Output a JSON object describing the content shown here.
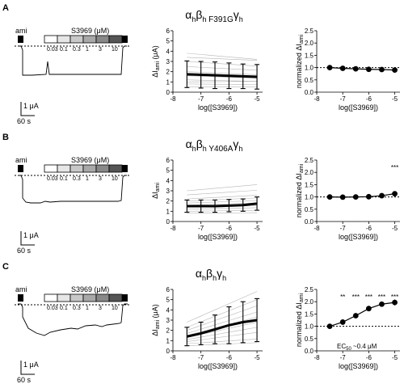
{
  "panels": [
    {
      "letter": "A",
      "subunit": {
        "alpha": "α",
        "alpha_sub": "h",
        "beta": "β",
        "beta_sub": "h",
        "mut": "F391G",
        "gamma": "γ",
        "gamma_sub": "h"
      },
      "trace": {
        "ami": "ami",
        "drug": "S3969 (μM)",
        "concs": [
          "0.03",
          "0.1",
          "0.3",
          "1",
          "3",
          "10"
        ],
        "scale_current": "1 μA",
        "scale_time": "60 s"
      },
      "abs": {
        "ylabel_main": "ΔI",
        "ylabel_sub": "ami",
        "ylabel_unit": " (μA)",
        "yticks": [
          "0",
          "1",
          "2",
          "3",
          "4",
          "5",
          "6"
        ],
        "ylim": [
          0,
          6
        ],
        "xlabel": "log([S3969])",
        "xticks": [
          "-8",
          "-7",
          "-6",
          "-5"
        ],
        "xlim": [
          -8,
          -4.8
        ],
        "mean": [
          [
            -7.5,
            1.75
          ],
          [
            -7,
            1.7
          ],
          [
            -6.5,
            1.65
          ],
          [
            -6,
            1.6
          ],
          [
            -5.5,
            1.55
          ],
          [
            -5,
            1.5
          ]
        ],
        "sd": [
          1.3,
          1.3,
          1.3,
          1.25,
          1.2,
          1.2
        ],
        "individual_starts": [
          0.8,
          1.2,
          1.6,
          2.0,
          2.5,
          3.0,
          3.4,
          3.8,
          0.5,
          1.0
        ],
        "individual_slopes": [
          -0.02,
          -0.05,
          -0.08,
          -0.1,
          -0.12,
          -0.15,
          -0.1,
          -0.2,
          0.0,
          0.02
        ]
      },
      "norm": {
        "ylabel_main": "normalized ΔI",
        "ylabel_sub": "ami",
        "yticks": [
          "0.0",
          "0.5",
          "1.0",
          "1.5",
          "2.0",
          "2.5"
        ],
        "ylim": [
          0,
          2.5
        ],
        "xlabel": "log([S3969])",
        "xticks": [
          "-8",
          "-7",
          "-6",
          "-5"
        ],
        "xlim": [
          -8,
          -4.8
        ],
        "points": [
          [
            -7.5,
            1.0
          ],
          [
            -7,
            0.97
          ],
          [
            -6.5,
            0.95
          ],
          [
            -6,
            0.93
          ],
          [
            -5.5,
            0.92
          ],
          [
            -5,
            0.9
          ]
        ],
        "err": [
          0.03,
          0.05,
          0.1,
          0.08,
          0.07,
          0.1
        ],
        "stars": [],
        "annotation_main": "",
        "annotation_sub": "",
        "annotation_rest": ""
      }
    },
    {
      "letter": "B",
      "subunit": {
        "alpha": "α",
        "alpha_sub": "h",
        "beta": "β",
        "beta_sub": "h",
        "mut": "Y406A",
        "gamma": "γ",
        "gamma_sub": "h"
      },
      "trace": {
        "ami": "ami",
        "drug": "S3969 (μM)",
        "concs": [
          "0.03",
          "0.1",
          "0.3",
          "1",
          "3",
          "10"
        ],
        "scale_current": "1 μA",
        "scale_time": "60 s"
      },
      "abs": {
        "ylabel_main": "ΔI",
        "ylabel_sub": "ami",
        "ylabel_unit": "",
        "yticks": [
          "0",
          "1",
          "2",
          "3",
          "4",
          "5",
          "6"
        ],
        "ylim": [
          0,
          6
        ],
        "xlabel": "log([S3969])",
        "xticks": [
          "-8",
          "-7",
          "-6",
          "-5"
        ],
        "xlim": [
          -8,
          -4.8
        ],
        "mean": [
          [
            -7.5,
            1.5
          ],
          [
            -7,
            1.5
          ],
          [
            -6.5,
            1.5
          ],
          [
            -6,
            1.55
          ],
          [
            -5.5,
            1.6
          ],
          [
            -5,
            1.75
          ]
        ],
        "sd": [
          0.6,
          0.6,
          0.6,
          0.6,
          0.6,
          0.65
        ],
        "individual_starts": [
          0.8,
          1.0,
          1.2,
          1.4,
          1.6,
          1.8,
          2.0,
          2.2,
          2.6,
          3.0
        ],
        "individual_slopes": [
          0.02,
          0.03,
          0.05,
          0.05,
          0.07,
          0.08,
          0.1,
          0.12,
          0.15,
          0.2
        ]
      },
      "norm": {
        "ylabel_main": "normalized ΔI",
        "ylabel_sub": "ami",
        "yticks": [
          "0.0",
          "0.5",
          "1.0",
          "1.5",
          "2.0",
          "2.5"
        ],
        "ylim": [
          0,
          2.5
        ],
        "xlabel": "log([S3969])",
        "xticks": [
          "-8",
          "-7",
          "-6",
          "-5"
        ],
        "xlim": [
          -8,
          -4.8
        ],
        "points": [
          [
            -7.5,
            1.0
          ],
          [
            -7,
            0.99
          ],
          [
            -6.5,
            1.0
          ],
          [
            -6,
            1.01
          ],
          [
            -5.5,
            1.05
          ],
          [
            -5,
            1.13
          ]
        ],
        "err": [
          0.02,
          0.02,
          0.02,
          0.03,
          0.03,
          0.04
        ],
        "stars": [
          {
            "x": -5,
            "label": "***"
          }
        ],
        "annotation_main": "",
        "annotation_sub": "",
        "annotation_rest": ""
      }
    },
    {
      "letter": "C",
      "subunit": {
        "alpha": "α",
        "alpha_sub": "h",
        "beta": "β",
        "beta_sub": "h",
        "mut": "",
        "gamma": "γ",
        "gamma_sub": "h"
      },
      "trace": {
        "ami": "ami",
        "drug": "S3969 (μM)",
        "concs": [
          "0.03",
          "0.1",
          "0.3",
          "1",
          "3",
          "10"
        ],
        "scale_current": "1 μA",
        "scale_time": "60 s"
      },
      "abs": {
        "ylabel_main": "ΔI",
        "ylabel_sub": "ami",
        "ylabel_unit": " (μA)",
        "yticks": [
          "0",
          "1",
          "2",
          "3",
          "4",
          "5",
          "6"
        ],
        "ylim": [
          0,
          6
        ],
        "xlabel": "log([S3969])",
        "xticks": [
          "-8",
          "-7",
          "-6",
          "-5"
        ],
        "xlim": [
          -8,
          -4.8
        ],
        "mean": [
          [
            -7.5,
            1.4
          ],
          [
            -7,
            1.7
          ],
          [
            -6.5,
            2.1
          ],
          [
            -6,
            2.5
          ],
          [
            -5.5,
            2.8
          ],
          [
            -5,
            3.0
          ]
        ],
        "sd": [
          0.9,
          1.1,
          1.4,
          1.8,
          2.0,
          2.1
        ],
        "individual_starts": [
          0.5,
          0.7,
          0.9,
          1.1,
          1.3,
          1.5,
          1.7,
          2.0,
          2.3,
          2.8
        ],
        "individual_slopes": [
          0.1,
          0.15,
          0.3,
          0.4,
          0.5,
          0.6,
          0.7,
          0.8,
          0.9,
          1.0
        ]
      },
      "norm": {
        "ylabel_main": "normalized ΔI",
        "ylabel_sub": "ami",
        "yticks": [
          "0.0",
          "0.5",
          "1.0",
          "1.5",
          "2.0",
          "2.5"
        ],
        "ylim": [
          0,
          2.5
        ],
        "xlabel": "log([S3969])",
        "xticks": [
          "-8",
          "-7",
          "-6",
          "-5"
        ],
        "xlim": [
          -8,
          -4.8
        ],
        "points": [
          [
            -7.5,
            1.0
          ],
          [
            -7,
            1.17
          ],
          [
            -6.5,
            1.43
          ],
          [
            -6,
            1.72
          ],
          [
            -5.5,
            1.9
          ],
          [
            -5,
            1.97
          ]
        ],
        "err": [
          0.02,
          0.05,
          0.08,
          0.1,
          0.1,
          0.12
        ],
        "stars": [
          {
            "x": -7,
            "label": "**"
          },
          {
            "x": -6.5,
            "label": "***"
          },
          {
            "x": -6,
            "label": "***"
          },
          {
            "x": -5.5,
            "label": "***"
          },
          {
            "x": -5,
            "label": "***"
          }
        ],
        "annotation_main": "EC",
        "annotation_sub": "50",
        "annotation_rest": " ~0.4 μM"
      }
    }
  ]
}
